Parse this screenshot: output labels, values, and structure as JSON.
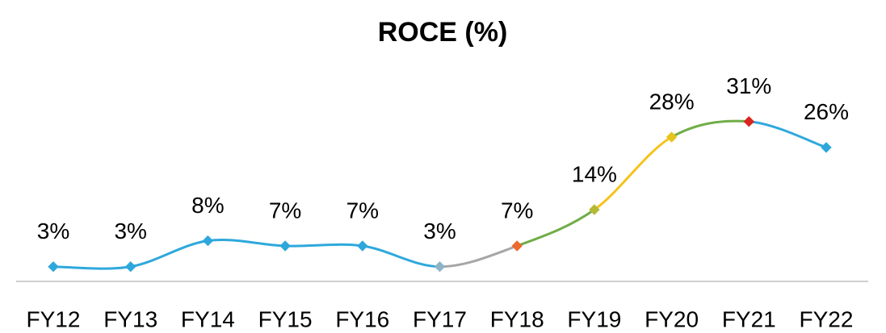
{
  "chart_data": {
    "type": "line",
    "title": "ROCE (%)",
    "categories": [
      "FY12",
      "FY13",
      "FY14",
      "FY15",
      "FY16",
      "FY17",
      "FY18",
      "FY19",
      "FY20",
      "FY21",
      "FY22"
    ],
    "values": [
      3,
      3,
      8,
      7,
      7,
      3,
      7,
      14,
      28,
      31,
      26
    ],
    "value_labels": [
      "3%",
      "3%",
      "8%",
      "7%",
      "7%",
      "3%",
      "7%",
      "14%",
      "28%",
      "31%",
      "26%"
    ],
    "segment_colors": [
      "#2ea8dc",
      "#2ea8dc",
      "#2ea8dc",
      "#2ea8dc",
      "#2ea8dc",
      "#a6a6a6",
      "#70ad47",
      "#f6c21b",
      "#70ad47",
      "#2ea8dc"
    ],
    "marker_colors": [
      "#2ea8dc",
      "#2ea8dc",
      "#2ea8dc",
      "#2ea8dc",
      "#2ea8dc",
      "#8db4c8",
      "#ed6a2e",
      "#b4b934",
      "#e6c31d",
      "#d9261c",
      "#2ea8dc"
    ],
    "ylim": [
      0,
      35
    ]
  }
}
